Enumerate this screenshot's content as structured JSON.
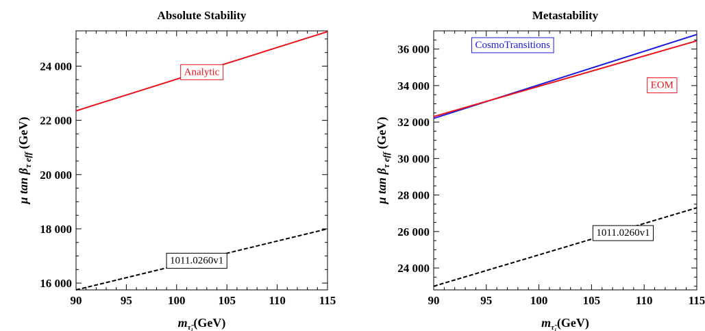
{
  "chart_data": [
    {
      "type": "line",
      "title": "Absolute Stability",
      "xlabel": "m",
      "xlabel_sub": "τ̃₁",
      "xlabel_unit": "(GeV)",
      "ylabel": "μ tan β",
      "ylabel_sub": "τ eff",
      "ylabel_unit": "(GeV)",
      "xlim": [
        90,
        115
      ],
      "ylim": [
        15750,
        25300
      ],
      "xticks": [
        90,
        95,
        100,
        105,
        110,
        115
      ],
      "xtick_labels": [
        "90",
        "95",
        "100",
        "105",
        "110",
        "115"
      ],
      "yticks": [
        16000,
        18000,
        20000,
        22000,
        24000
      ],
      "ytick_labels": [
        "16 000",
        "18 000",
        "20 000",
        "22 000",
        "24 000"
      ],
      "series": [
        {
          "name": "Analytic",
          "color": "#e8141b",
          "dash": "solid",
          "x": [
            90,
            115
          ],
          "y": [
            22350,
            25270
          ]
        },
        {
          "name": "1011.0260v1",
          "color": "#000000",
          "dash": "dashed",
          "x": [
            90,
            115
          ],
          "y": [
            15750,
            18000
          ]
        }
      ],
      "annotations": [
        {
          "text": "Analytic",
          "color": "#e8141b",
          "x": 102.5,
          "y": 23800
        },
        {
          "text": "1011.0260v1",
          "color": "#000000",
          "x": 102.0,
          "y": 16850
        }
      ]
    },
    {
      "type": "line",
      "title": "Metastability",
      "xlabel": "m",
      "xlabel_sub": "τ̃₁",
      "xlabel_unit": "(GeV)",
      "ylabel": "μ tan β",
      "ylabel_sub": "τ eff",
      "ylabel_unit": "(GeV)",
      "xlim": [
        90,
        115
      ],
      "ylim": [
        22800,
        37000
      ],
      "xticks": [
        90,
        95,
        100,
        105,
        110,
        115
      ],
      "xtick_labels": [
        "90",
        "95",
        "100",
        "105",
        "110",
        "115"
      ],
      "yticks": [
        24000,
        26000,
        28000,
        30000,
        32000,
        34000,
        36000
      ],
      "ytick_labels": [
        "24 000",
        "26 000",
        "28 000",
        "30 000",
        "32 000",
        "34 000",
        "36 000"
      ],
      "series": [
        {
          "name": "CosmoTransitions",
          "color": "#1a1ae0",
          "dash": "solid",
          "x": [
            90,
            115
          ],
          "y": [
            32200,
            36800
          ]
        },
        {
          "name": "EOM",
          "color": "#e8141b",
          "dash": "solid",
          "x": [
            90,
            115
          ],
          "y": [
            32300,
            36450
          ]
        },
        {
          "name": "1011.0260v1",
          "color": "#000000",
          "dash": "dashed",
          "x": [
            90,
            115
          ],
          "y": [
            23000,
            27300
          ]
        }
      ],
      "annotations": [
        {
          "text": "CosmoTransitions",
          "color": "#1a1ae0",
          "x": 97.5,
          "y": 36250
        },
        {
          "text": "EOM",
          "color": "#e8141b",
          "x": 111.7,
          "y": 34050
        },
        {
          "text": "1011.0260v1",
          "color": "#000000",
          "x": 108.0,
          "y": 25950
        }
      ]
    }
  ]
}
